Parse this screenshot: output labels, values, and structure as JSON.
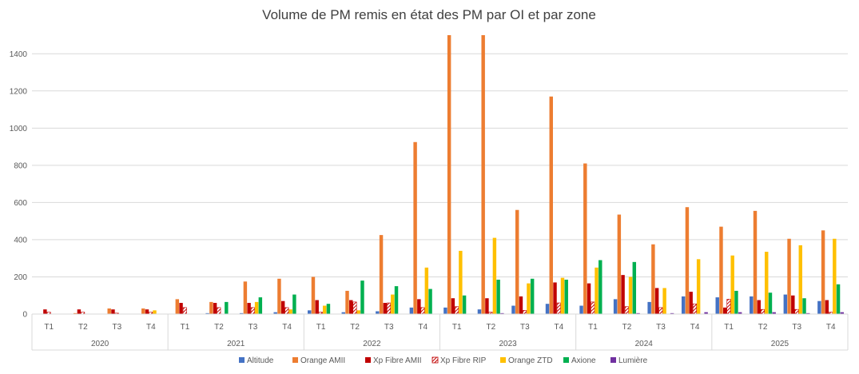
{
  "chart_data": {
    "type": "bar",
    "title": "Volume de PM remis en état des PM par OI et par zone",
    "xlabel": "",
    "ylabel": "",
    "ylim": [
      0,
      1500
    ],
    "yticks": [
      0,
      200,
      400,
      600,
      800,
      1000,
      1200,
      1400
    ],
    "grid": true,
    "legend_position": "bottom",
    "years": [
      "2020",
      "2021",
      "2022",
      "2023",
      "2024",
      "2025"
    ],
    "quarters": [
      "T1",
      "T2",
      "T3",
      "T4"
    ],
    "categories": [
      "2020 T1",
      "2020 T2",
      "2020 T3",
      "2020 T4",
      "2021 T1",
      "2021 T2",
      "2021 T3",
      "2021 T4",
      "2022 T1",
      "2022 T2",
      "2022 T3",
      "2022 T4",
      "2023 T1",
      "2023 T2",
      "2023 T3",
      "2023 T4",
      "2024 T1",
      "2024 T2",
      "2024 T3",
      "2024 T4",
      "2025 T1",
      "2025 T2",
      "2025 T3",
      "2025 T4"
    ],
    "series": [
      {
        "name": "Altitude",
        "color": "#4472C4",
        "pattern": "solid",
        "values": [
          0,
          0,
          0,
          0,
          0,
          5,
          5,
          10,
          20,
          10,
          15,
          35,
          35,
          25,
          45,
          55,
          45,
          80,
          65,
          95,
          90,
          95,
          105,
          70
        ]
      },
      {
        "name": "Orange AMII",
        "color": "#ED7D31",
        "pattern": "solid",
        "values": [
          0,
          5,
          30,
          30,
          80,
          65,
          175,
          190,
          200,
          125,
          425,
          925,
          1500,
          1500,
          560,
          1170,
          810,
          535,
          375,
          575,
          470,
          555,
          405,
          450
        ]
      },
      {
        "name": "Xp Fibre AMII",
        "color": "#C00000",
        "pattern": "solid",
        "values": [
          25,
          25,
          25,
          25,
          60,
          60,
          60,
          70,
          75,
          75,
          60,
          80,
          85,
          85,
          95,
          170,
          165,
          210,
          140,
          120,
          35,
          75,
          100,
          75
        ]
      },
      {
        "name": "Xp Fibre RIP",
        "color": "#C00000",
        "pattern": "hatch",
        "values": [
          10,
          10,
          5,
          10,
          35,
          35,
          35,
          35,
          10,
          65,
          60,
          35,
          40,
          10,
          20,
          60,
          65,
          40,
          35,
          55,
          80,
          25,
          25,
          10
        ]
      },
      {
        "name": "Orange ZTD",
        "color": "#FFC000",
        "pattern": "solid",
        "values": [
          0,
          0,
          0,
          20,
          0,
          0,
          65,
          25,
          45,
          20,
          105,
          250,
          340,
          410,
          165,
          195,
          250,
          200,
          140,
          295,
          315,
          335,
          370,
          405
        ]
      },
      {
        "name": "Axione",
        "color": "#00B050",
        "pattern": "solid",
        "values": [
          0,
          0,
          0,
          0,
          0,
          65,
          90,
          105,
          55,
          180,
          150,
          135,
          100,
          185,
          190,
          185,
          290,
          280,
          0,
          0,
          125,
          115,
          85,
          160
        ]
      },
      {
        "name": "Lumière",
        "color": "#7030A0",
        "pattern": "solid",
        "values": [
          0,
          0,
          0,
          0,
          0,
          0,
          0,
          0,
          0,
          0,
          0,
          0,
          0,
          5,
          0,
          0,
          0,
          5,
          5,
          10,
          10,
          10,
          5,
          10
        ]
      }
    ]
  }
}
